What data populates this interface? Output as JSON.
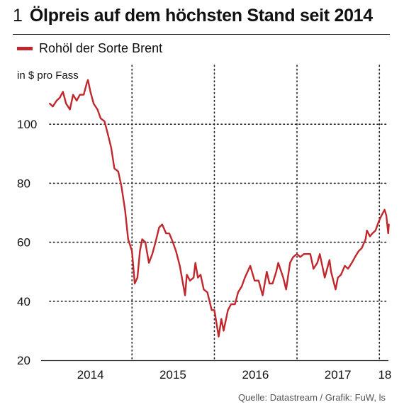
{
  "header": {
    "figure_number": "1",
    "title": "Ölpreis auf dem höchsten Stand seit 2014"
  },
  "legend": {
    "label": "Rohöl der Sorte Brent",
    "color": "#c0282d"
  },
  "footer": {
    "source": "Quelle: Datastream / Grafik: FuW, ls"
  },
  "chart_data": {
    "type": "line",
    "title": "Ölpreis auf dem höchsten Stand seit 2014",
    "ylabel": "in $ pro Fass",
    "xlabel": "",
    "ylim": [
      20,
      120
    ],
    "xlim": [
      "2014-01-01",
      "2018-02-10"
    ],
    "y_ticks": [
      20,
      40,
      60,
      80,
      100
    ],
    "x_ticks": [
      {
        "date": "2014-07-01",
        "label": "2014"
      },
      {
        "date": "2015-07-01",
        "label": "2015"
      },
      {
        "date": "2016-07-01",
        "label": "2016"
      },
      {
        "date": "2017-07-01",
        "label": "2017"
      },
      {
        "date": "2018-01-25",
        "label": "18"
      }
    ],
    "grid": {
      "horizontal": true,
      "vertical": true,
      "style": "dotted",
      "vertical_at": [
        "2015-01-01",
        "2016-01-01",
        "2017-01-01",
        "2018-01-01"
      ]
    },
    "series": [
      {
        "name": "Rohöl der Sorte Brent",
        "color": "#c0282d",
        "points": [
          [
            "2014-01-02",
            107
          ],
          [
            "2014-01-15",
            106
          ],
          [
            "2014-02-01",
            108
          ],
          [
            "2014-02-15",
            109
          ],
          [
            "2014-03-01",
            111
          ],
          [
            "2014-03-15",
            107
          ],
          [
            "2014-04-01",
            105
          ],
          [
            "2014-04-15",
            110
          ],
          [
            "2014-05-01",
            108
          ],
          [
            "2014-05-15",
            110
          ],
          [
            "2014-06-01",
            110
          ],
          [
            "2014-06-15",
            114
          ],
          [
            "2014-06-20",
            115
          ],
          [
            "2014-07-01",
            111
          ],
          [
            "2014-07-15",
            107
          ],
          [
            "2014-08-01",
            105
          ],
          [
            "2014-08-15",
            102
          ],
          [
            "2014-09-01",
            101
          ],
          [
            "2014-09-15",
            97
          ],
          [
            "2014-10-01",
            92
          ],
          [
            "2014-10-15",
            85
          ],
          [
            "2014-11-01",
            84
          ],
          [
            "2014-11-15",
            79
          ],
          [
            "2014-12-01",
            71
          ],
          [
            "2014-12-15",
            61
          ],
          [
            "2015-01-01",
            57
          ],
          [
            "2015-01-13",
            46
          ],
          [
            "2015-01-25",
            48
          ],
          [
            "2015-02-05",
            57
          ],
          [
            "2015-02-15",
            61
          ],
          [
            "2015-03-01",
            60
          ],
          [
            "2015-03-17",
            53
          ],
          [
            "2015-04-01",
            56
          ],
          [
            "2015-04-15",
            60
          ],
          [
            "2015-05-01",
            65
          ],
          [
            "2015-05-15",
            66
          ],
          [
            "2015-06-01",
            63
          ],
          [
            "2015-06-15",
            63
          ],
          [
            "2015-07-01",
            60
          ],
          [
            "2015-07-15",
            57
          ],
          [
            "2015-08-01",
            52
          ],
          [
            "2015-08-24",
            42
          ],
          [
            "2015-09-01",
            49
          ],
          [
            "2015-09-15",
            47
          ],
          [
            "2015-10-01",
            48
          ],
          [
            "2015-10-09",
            53
          ],
          [
            "2015-10-20",
            48
          ],
          [
            "2015-11-01",
            49
          ],
          [
            "2015-11-15",
            44
          ],
          [
            "2015-12-01",
            43
          ],
          [
            "2015-12-20",
            37
          ],
          [
            "2016-01-01",
            37
          ],
          [
            "2016-01-20",
            28
          ],
          [
            "2016-02-01",
            34
          ],
          [
            "2016-02-11",
            30
          ],
          [
            "2016-03-01",
            37
          ],
          [
            "2016-03-15",
            39
          ],
          [
            "2016-04-01",
            39
          ],
          [
            "2016-04-15",
            43
          ],
          [
            "2016-05-01",
            45
          ],
          [
            "2016-05-15",
            48
          ],
          [
            "2016-06-08",
            52
          ],
          [
            "2016-06-27",
            47
          ],
          [
            "2016-07-15",
            47
          ],
          [
            "2016-08-02",
            42
          ],
          [
            "2016-08-20",
            50
          ],
          [
            "2016-09-01",
            46
          ],
          [
            "2016-09-15",
            46
          ],
          [
            "2016-10-01",
            50
          ],
          [
            "2016-10-10",
            53
          ],
          [
            "2016-11-01",
            48
          ],
          [
            "2016-11-14",
            44
          ],
          [
            "2016-12-01",
            53
          ],
          [
            "2016-12-15",
            55
          ],
          [
            "2017-01-01",
            56
          ],
          [
            "2017-01-15",
            55
          ],
          [
            "2017-02-01",
            56
          ],
          [
            "2017-02-15",
            56
          ],
          [
            "2017-03-01",
            56
          ],
          [
            "2017-03-15",
            51
          ],
          [
            "2017-04-01",
            53
          ],
          [
            "2017-04-12",
            56
          ],
          [
            "2017-05-04",
            48
          ],
          [
            "2017-05-25",
            54
          ],
          [
            "2017-06-01",
            50
          ],
          [
            "2017-06-21",
            44
          ],
          [
            "2017-07-01",
            48
          ],
          [
            "2017-07-15",
            49
          ],
          [
            "2017-08-01",
            52
          ],
          [
            "2017-08-15",
            51
          ],
          [
            "2017-09-01",
            53
          ],
          [
            "2017-09-15",
            55
          ],
          [
            "2017-10-01",
            57
          ],
          [
            "2017-10-15",
            58
          ],
          [
            "2017-11-01",
            61
          ],
          [
            "2017-11-07",
            64
          ],
          [
            "2017-11-20",
            62
          ],
          [
            "2017-12-01",
            63
          ],
          [
            "2017-12-15",
            64
          ],
          [
            "2017-12-29",
            67
          ],
          [
            "2018-01-10",
            69
          ],
          [
            "2018-01-24",
            71
          ],
          [
            "2018-02-01",
            69
          ],
          [
            "2018-02-09",
            63
          ],
          [
            "2018-02-12",
            66
          ]
        ]
      }
    ]
  }
}
